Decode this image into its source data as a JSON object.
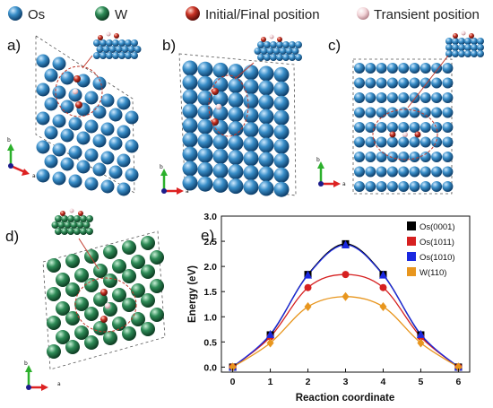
{
  "legend": {
    "items": [
      {
        "label": "Os",
        "color": "#2f8fd0"
      },
      {
        "label": "W",
        "color": "#2e8b57"
      },
      {
        "label": "Initial/Final position",
        "color": "#c83224"
      },
      {
        "label": "Transient position",
        "color": "#f2d4d8"
      }
    ]
  },
  "panels": {
    "a": "a)",
    "b": "b)",
    "c": "c)",
    "d": "d)",
    "e": "e)"
  },
  "axis_mini": {
    "b": "b",
    "a": "a"
  },
  "colors": {
    "os_atom": "#3a8fc9",
    "w_atom": "#2e8b57",
    "initial_final": "#c83224",
    "transient": "#f2d4d8",
    "path_dashed": "#c0392b"
  },
  "chart_data": {
    "type": "line",
    "title": "",
    "xlabel": "Reaction coordinate",
    "ylabel": "Energy (eV)",
    "xlim": [
      -0.3,
      6.3
    ],
    "ylim": [
      -0.1,
      3.0
    ],
    "xticks": [
      0,
      1,
      2,
      3,
      4,
      5,
      6
    ],
    "yticks": [
      "0.0",
      "0.5",
      "1.0",
      "1.5",
      "2.0",
      "2.5",
      "3.0"
    ],
    "x": [
      0,
      1,
      2,
      3,
      4,
      5,
      6
    ],
    "legend_position": "top-right",
    "series": [
      {
        "name": "Os(0001)",
        "values": [
          0,
          0.64,
          1.84,
          2.45,
          1.84,
          0.64,
          0
        ],
        "color": "#000000",
        "marker": "square"
      },
      {
        "name": "Os(1011)",
        "values": [
          0,
          0.6,
          1.58,
          1.84,
          1.58,
          0.6,
          0
        ],
        "color": "#d62020",
        "marker": "circle"
      },
      {
        "name": "Os(1010)",
        "values": [
          0,
          0.65,
          1.83,
          2.43,
          1.83,
          0.65,
          0
        ],
        "color": "#1a28e0",
        "marker": "triangle"
      },
      {
        "name": "W(110)",
        "values": [
          0,
          0.48,
          1.2,
          1.4,
          1.2,
          0.48,
          0
        ],
        "color": "#e8961e",
        "marker": "diamond"
      }
    ]
  }
}
